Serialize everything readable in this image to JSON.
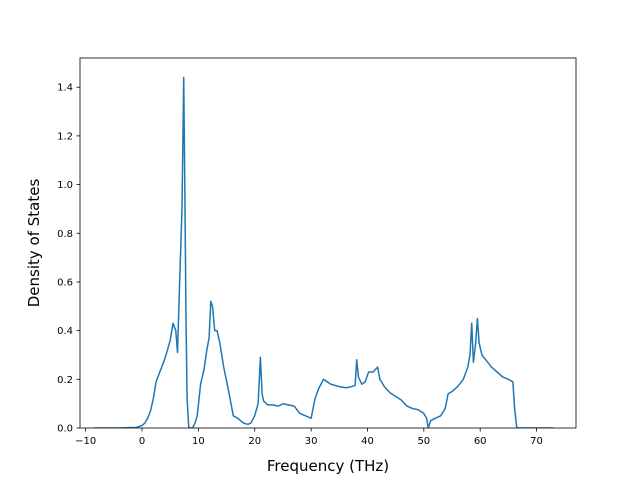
{
  "chart_data": {
    "type": "line",
    "title": "",
    "xlabel": "Frequency (THz)",
    "ylabel": "Density of States",
    "xlim": [
      -11,
      77
    ],
    "ylim": [
      0.0,
      1.52
    ],
    "xticks": [
      {
        "value": -10,
        "label": "−10"
      },
      {
        "value": 0,
        "label": "0"
      },
      {
        "value": 10,
        "label": "10"
      },
      {
        "value": 20,
        "label": "20"
      },
      {
        "value": 30,
        "label": "30"
      },
      {
        "value": 40,
        "label": "40"
      },
      {
        "value": 50,
        "label": "50"
      },
      {
        "value": 60,
        "label": "60"
      },
      {
        "value": 70,
        "label": "70"
      }
    ],
    "yticks": [
      {
        "value": 0.0,
        "label": "0.0"
      },
      {
        "value": 0.2,
        "label": "0.2"
      },
      {
        "value": 0.4,
        "label": "0.4"
      },
      {
        "value": 0.6,
        "label": "0.6"
      },
      {
        "value": 0.8,
        "label": "0.8"
      },
      {
        "value": 1.0,
        "label": "1.0"
      },
      {
        "value": 1.2,
        "label": "1.2"
      },
      {
        "value": 1.4,
        "label": "1.4"
      }
    ],
    "grid": false,
    "series": [
      {
        "color": "#1f77b4",
        "x": [
          -8.5,
          -4,
          -1,
          0,
          0.5,
          1,
          1.5,
          2,
          2.5,
          3,
          3.5,
          4,
          4.5,
          5,
          5.5,
          6,
          6.3,
          6.7,
          7.1,
          7.4,
          7.6,
          7.8,
          8.0,
          8.3,
          8.6,
          9.0,
          9.4,
          9.8,
          10.4,
          11.0,
          11.5,
          11.9,
          12.2,
          12.5,
          12.9,
          13.3,
          13.8,
          14.5,
          15.3,
          16.2,
          17.0,
          18.0,
          18.8,
          19.3,
          20.0,
          20.6,
          21.0,
          21.3,
          21.6,
          22.3,
          23.2,
          24.2,
          25.0,
          26.0,
          27.0,
          28.0,
          29.0,
          30.0,
          30.7,
          31.3,
          32.2,
          33.5,
          35.0,
          36.2,
          37.2,
          37.8,
          38.1,
          38.4,
          39.0,
          39.6,
          40.2,
          41.0,
          41.8,
          42.2,
          43.0,
          44.0,
          45.0,
          46.0,
          47.0,
          48.0,
          49.0,
          50.0,
          50.5,
          50.8,
          51.2,
          52.0,
          53.0,
          53.8,
          54.3,
          55.0,
          56.0,
          57.0,
          57.8,
          58.2,
          58.5,
          58.8,
          59.2,
          59.5,
          59.8,
          60.3,
          61.0,
          62.0,
          63.0,
          64.0,
          65.0,
          65.8,
          66.1,
          66.5,
          67.0,
          70.0,
          73.0
        ],
        "y": [
          0.0,
          0.0,
          0.002,
          0.01,
          0.02,
          0.04,
          0.07,
          0.12,
          0.19,
          0.22,
          0.25,
          0.28,
          0.32,
          0.36,
          0.43,
          0.4,
          0.31,
          0.62,
          0.9,
          1.44,
          1.0,
          0.45,
          0.12,
          0.0,
          0.0,
          0.0,
          0.02,
          0.05,
          0.18,
          0.24,
          0.32,
          0.37,
          0.52,
          0.5,
          0.4,
          0.4,
          0.35,
          0.25,
          0.16,
          0.05,
          0.04,
          0.02,
          0.015,
          0.02,
          0.05,
          0.1,
          0.29,
          0.14,
          0.11,
          0.095,
          0.095,
          0.09,
          0.1,
          0.095,
          0.09,
          0.06,
          0.05,
          0.04,
          0.12,
          0.16,
          0.2,
          0.18,
          0.17,
          0.165,
          0.17,
          0.175,
          0.28,
          0.21,
          0.18,
          0.19,
          0.23,
          0.23,
          0.25,
          0.2,
          0.17,
          0.145,
          0.13,
          0.115,
          0.09,
          0.08,
          0.075,
          0.06,
          0.04,
          0.0,
          0.03,
          0.04,
          0.05,
          0.08,
          0.14,
          0.15,
          0.17,
          0.2,
          0.25,
          0.3,
          0.43,
          0.27,
          0.35,
          0.45,
          0.35,
          0.3,
          0.28,
          0.25,
          0.23,
          0.21,
          0.2,
          0.19,
          0.08,
          0.0,
          0.0,
          0.0,
          0.0
        ]
      }
    ]
  }
}
